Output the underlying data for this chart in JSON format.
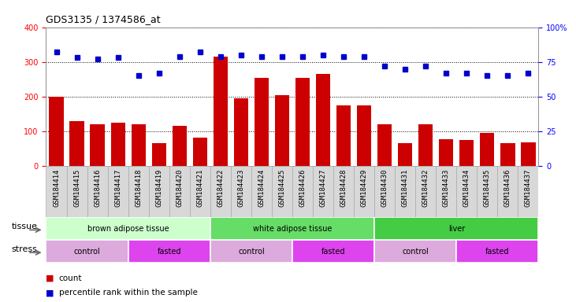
{
  "title": "GDS3135 / 1374586_at",
  "samples": [
    "GSM184414",
    "GSM184415",
    "GSM184416",
    "GSM184417",
    "GSM184418",
    "GSM184419",
    "GSM184420",
    "GSM184421",
    "GSM184422",
    "GSM184423",
    "GSM184424",
    "GSM184425",
    "GSM184426",
    "GSM184427",
    "GSM184428",
    "GSM184429",
    "GSM184430",
    "GSM184431",
    "GSM184432",
    "GSM184433",
    "GSM184434",
    "GSM184435",
    "GSM184436",
    "GSM184437"
  ],
  "counts": [
    200,
    130,
    120,
    125,
    120,
    65,
    115,
    82,
    315,
    195,
    255,
    205,
    255,
    265,
    175,
    175,
    120,
    65,
    120,
    78,
    75,
    95,
    65,
    68
  ],
  "percentile": [
    82,
    78,
    77,
    78,
    65,
    67,
    79,
    82,
    79,
    80,
    79,
    79,
    79,
    80,
    79,
    79,
    72,
    70,
    72,
    67,
    67,
    65,
    65,
    67
  ],
  "bar_color": "#cc0000",
  "dot_color": "#0000cc",
  "ylim_left": [
    0,
    400
  ],
  "ylim_right": [
    0,
    100
  ],
  "yticks_left": [
    0,
    100,
    200,
    300,
    400
  ],
  "yticks_right": [
    0,
    25,
    50,
    75,
    100
  ],
  "tissue_groups": [
    {
      "label": "brown adipose tissue",
      "start": 0,
      "end": 8,
      "color": "#ccffcc"
    },
    {
      "label": "white adipose tissue",
      "start": 8,
      "end": 16,
      "color": "#66dd66"
    },
    {
      "label": "liver",
      "start": 16,
      "end": 24,
      "color": "#44cc44"
    }
  ],
  "stress_groups": [
    {
      "label": "control",
      "start": 0,
      "end": 4,
      "color": "#ddaadd"
    },
    {
      "label": "fasted",
      "start": 4,
      "end": 8,
      "color": "#dd44ee"
    },
    {
      "label": "control",
      "start": 8,
      "end": 12,
      "color": "#ddaadd"
    },
    {
      "label": "fasted",
      "start": 12,
      "end": 16,
      "color": "#dd44ee"
    },
    {
      "label": "control",
      "start": 16,
      "end": 20,
      "color": "#ddaadd"
    },
    {
      "label": "fasted",
      "start": 20,
      "end": 24,
      "color": "#dd44ee"
    }
  ],
  "bg_color": "#ffffff",
  "plot_bg_color": "#ffffff",
  "tick_label_bg": "#d8d8d8",
  "grid_color": "#000000",
  "label_fontsize": 7,
  "tick_fontsize": 6.5,
  "title_fontsize": 9,
  "legend_fontsize": 7.5,
  "row_label_fontsize": 8
}
